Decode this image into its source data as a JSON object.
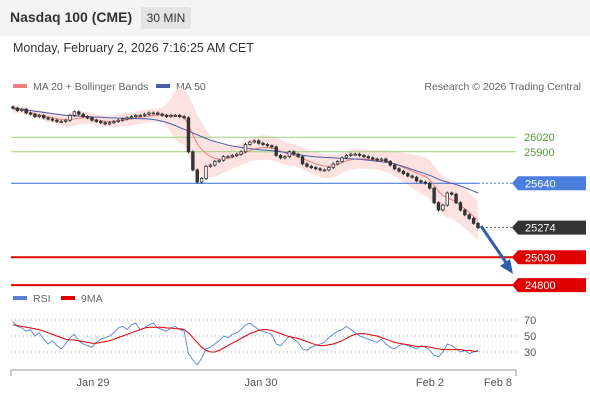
{
  "header": {
    "title": "Nasdaq 100 (CME)",
    "timeframe": "30 MIN",
    "datetime": "Monday, February 2, 2026 7:16:25 AM CET"
  },
  "colors": {
    "ma20": "#f08080",
    "bollinger_fill": "#fde2e2",
    "ma50": "#4a5fa8",
    "candle": "#333333",
    "green_level": "#9ad07a",
    "blue_level": "#4a7fe0",
    "red_level": "#e00000",
    "current": "#333333",
    "arrow": "#2d5ea8",
    "rsi": "#5b7fd6",
    "rsi_ma": "#e00000"
  },
  "chart_data": [
    {
      "type": "candlestick",
      "legend": {
        "ma20_label": "MA 20 + Bollinger Bands",
        "ma50_label": "MA 50",
        "placement": "top-left"
      },
      "copyright": "Research © 2026 Trading Central",
      "x_ticks": [
        "Jan 29",
        "Jan 30",
        "Feb 2",
        "Feb 8"
      ],
      "ylim": [
        24760,
        26360
      ],
      "levels": {
        "resistance": [
          {
            "value": 26020,
            "label": "26020"
          },
          {
            "value": 25900,
            "label": "25900"
          }
        ],
        "pivot": {
          "value": 25640,
          "label": "25640"
        },
        "current": {
          "value": 25274,
          "label": "25274"
        },
        "support": [
          {
            "value": 25030,
            "label": "25030"
          },
          {
            "value": 24800,
            "label": "24800"
          }
        ]
      },
      "close": [
        26260,
        26240,
        26250,
        26220,
        26210,
        26190,
        26200,
        26180,
        26170,
        26160,
        26150,
        26150,
        26160,
        26200,
        26230,
        26210,
        26190,
        26180,
        26160,
        26150,
        26140,
        26130,
        26140,
        26150,
        26160,
        26170,
        26180,
        26190,
        26200,
        26200,
        26210,
        26220,
        26220,
        26210,
        26200,
        26190,
        26200,
        26200,
        26190,
        26180,
        25900,
        25750,
        25650,
        25680,
        25780,
        25790,
        25820,
        25830,
        25860,
        25860,
        25870,
        25880,
        25900,
        25960,
        25980,
        25990,
        25970,
        25960,
        25950,
        25940,
        25870,
        25850,
        25860,
        25900,
        25880,
        25860,
        25800,
        25780,
        25770,
        25760,
        25750,
        25750,
        25770,
        25800,
        25820,
        25850,
        25870,
        25880,
        25880,
        25870,
        25860,
        25850,
        25840,
        25830,
        25840,
        25820,
        25790,
        25760,
        25740,
        25720,
        25700,
        25690,
        25660,
        25650,
        25640,
        25600,
        25480,
        25420,
        25460,
        25560,
        25550,
        25480,
        25420,
        25380,
        25350,
        25310,
        25274
      ],
      "ma20": [
        26255,
        26250,
        26245,
        26235,
        26225,
        26215,
        26205,
        26195,
        26188,
        26180,
        26172,
        26165,
        26162,
        26165,
        26172,
        26178,
        26180,
        26178,
        26172,
        26165,
        26158,
        26152,
        26150,
        26152,
        26155,
        26160,
        26166,
        26172,
        26178,
        26184,
        26190,
        26195,
        26200,
        26203,
        26204,
        26203,
        26202,
        26202,
        26200,
        26185,
        26120,
        26040,
        25965,
        25920,
        25885,
        25860,
        25845,
        25838,
        25840,
        25845,
        25855,
        25865,
        25878,
        25895,
        25910,
        25922,
        25930,
        25935,
        25935,
        25930,
        25920,
        25905,
        25890,
        25880,
        25870,
        25860,
        25845,
        25830,
        25815,
        25800,
        25790,
        25782,
        25780,
        25785,
        25795,
        25810,
        25825,
        25835,
        25840,
        25842,
        25840,
        25838,
        25835,
        25832,
        25830,
        25825,
        25815,
        25800,
        25785,
        25770,
        25755,
        25740,
        25725,
        25710,
        25695,
        25670,
        25625,
        25575,
        25540,
        25520,
        25505,
        25485,
        25460,
        25430,
        25400,
        25365,
        25330
      ],
      "ma50": [
        26260,
        26255,
        26250,
        26245,
        26240,
        26235,
        26230,
        26225,
        26220,
        26215,
        26210,
        26205,
        26200,
        26198,
        26196,
        26194,
        26192,
        26190,
        26188,
        26186,
        26184,
        26182,
        26180,
        26179,
        26178,
        26177,
        26176,
        26175,
        26174,
        26173,
        26172,
        26170,
        26166,
        26160,
        26152,
        26142,
        26130,
        26116,
        26100,
        26085,
        26070,
        26055,
        26040,
        26025,
        26010,
        25995,
        25985,
        25975,
        25965,
        25955,
        25948,
        25942,
        25936,
        25930,
        25926,
        25922,
        25918,
        25915,
        25912,
        25908,
        25904,
        25900,
        25895,
        25890,
        25884,
        25878,
        25872,
        25866,
        25862,
        25858,
        25856,
        25854,
        25852,
        25850,
        25848,
        25846,
        25844,
        25842,
        25840,
        25838,
        25834,
        25830,
        25826,
        25822,
        25818,
        25814,
        25808,
        25800,
        25790,
        25778,
        25766,
        25754,
        25742,
        25730,
        25718,
        25706,
        25690,
        25674,
        25660,
        25650,
        25640,
        25630,
        25618,
        25605,
        25590,
        25575,
        25560
      ],
      "bb_width": [
        30,
        30,
        30,
        30,
        30,
        35,
        35,
        40,
        40,
        45,
        45,
        45,
        50,
        55,
        55,
        55,
        50,
        50,
        45,
        45,
        45,
        45,
        45,
        50,
        50,
        50,
        55,
        55,
        55,
        55,
        55,
        55,
        55,
        55,
        60,
        90,
        140,
        200,
        230,
        230,
        250,
        250,
        240,
        220,
        200,
        170,
        150,
        130,
        110,
        100,
        95,
        90,
        90,
        90,
        90,
        95,
        100,
        100,
        100,
        100,
        100,
        100,
        95,
        95,
        90,
        90,
        90,
        90,
        95,
        100,
        100,
        100,
        100,
        95,
        90,
        85,
        85,
        85,
        85,
        80,
        80,
        80,
        80,
        80,
        85,
        90,
        95,
        100,
        110,
        120,
        130,
        140,
        150,
        155,
        160,
        160,
        160,
        160,
        160,
        160,
        160,
        160,
        160,
        160,
        160,
        160,
        160
      ]
    },
    {
      "type": "line",
      "legend": {
        "rsi_label": "RSI",
        "ma_label": "9MA",
        "placement": "top-left"
      },
      "ylim": [
        0,
        100
      ],
      "y_ticks": [
        {
          "value": 70,
          "label": "70"
        },
        {
          "value": 50,
          "label": "50"
        },
        {
          "value": 30,
          "label": "30"
        }
      ],
      "rsi": [
        68,
        62,
        60,
        56,
        58,
        50,
        54,
        46,
        40,
        44,
        38,
        34,
        40,
        48,
        52,
        44,
        40,
        38,
        36,
        42,
        46,
        48,
        50,
        54,
        60,
        62,
        58,
        64,
        66,
        58,
        60,
        64,
        66,
        60,
        58,
        56,
        60,
        62,
        58,
        56,
        28,
        20,
        14,
        22,
        34,
        36,
        40,
        44,
        50,
        48,
        52,
        54,
        58,
        64,
        66,
        62,
        58,
        56,
        54,
        52,
        40,
        38,
        44,
        50,
        46,
        42,
        34,
        32,
        36,
        38,
        40,
        42,
        48,
        52,
        56,
        58,
        62,
        58,
        54,
        50,
        48,
        46,
        44,
        42,
        46,
        40,
        36,
        34,
        38,
        40,
        38,
        36,
        34,
        38,
        36,
        32,
        26,
        24,
        30,
        40,
        38,
        34,
        30,
        32,
        28,
        30,
        32
      ],
      "rsi_ma": [
        64,
        63,
        62,
        61,
        60,
        59,
        58,
        56,
        54,
        52,
        50,
        48,
        46,
        45,
        45,
        44,
        43,
        42,
        41,
        41,
        42,
        43,
        44,
        46,
        48,
        50,
        52,
        54,
        56,
        58,
        60,
        61,
        61,
        61,
        61,
        60,
        60,
        59,
        59,
        58,
        54,
        48,
        42,
        36,
        32,
        30,
        30,
        32,
        35,
        38,
        41,
        44,
        47,
        50,
        53,
        55,
        57,
        58,
        58,
        57,
        55,
        53,
        51,
        49,
        48,
        47,
        45,
        43,
        41,
        39,
        38,
        38,
        39,
        40,
        42,
        44,
        47,
        50,
        52,
        53,
        53,
        52,
        51,
        50,
        48,
        46,
        44,
        42,
        41,
        40,
        39,
        38,
        37,
        37,
        37,
        36,
        35,
        34,
        33,
        33,
        33,
        33,
        33,
        32,
        32,
        31,
        31
      ]
    }
  ]
}
